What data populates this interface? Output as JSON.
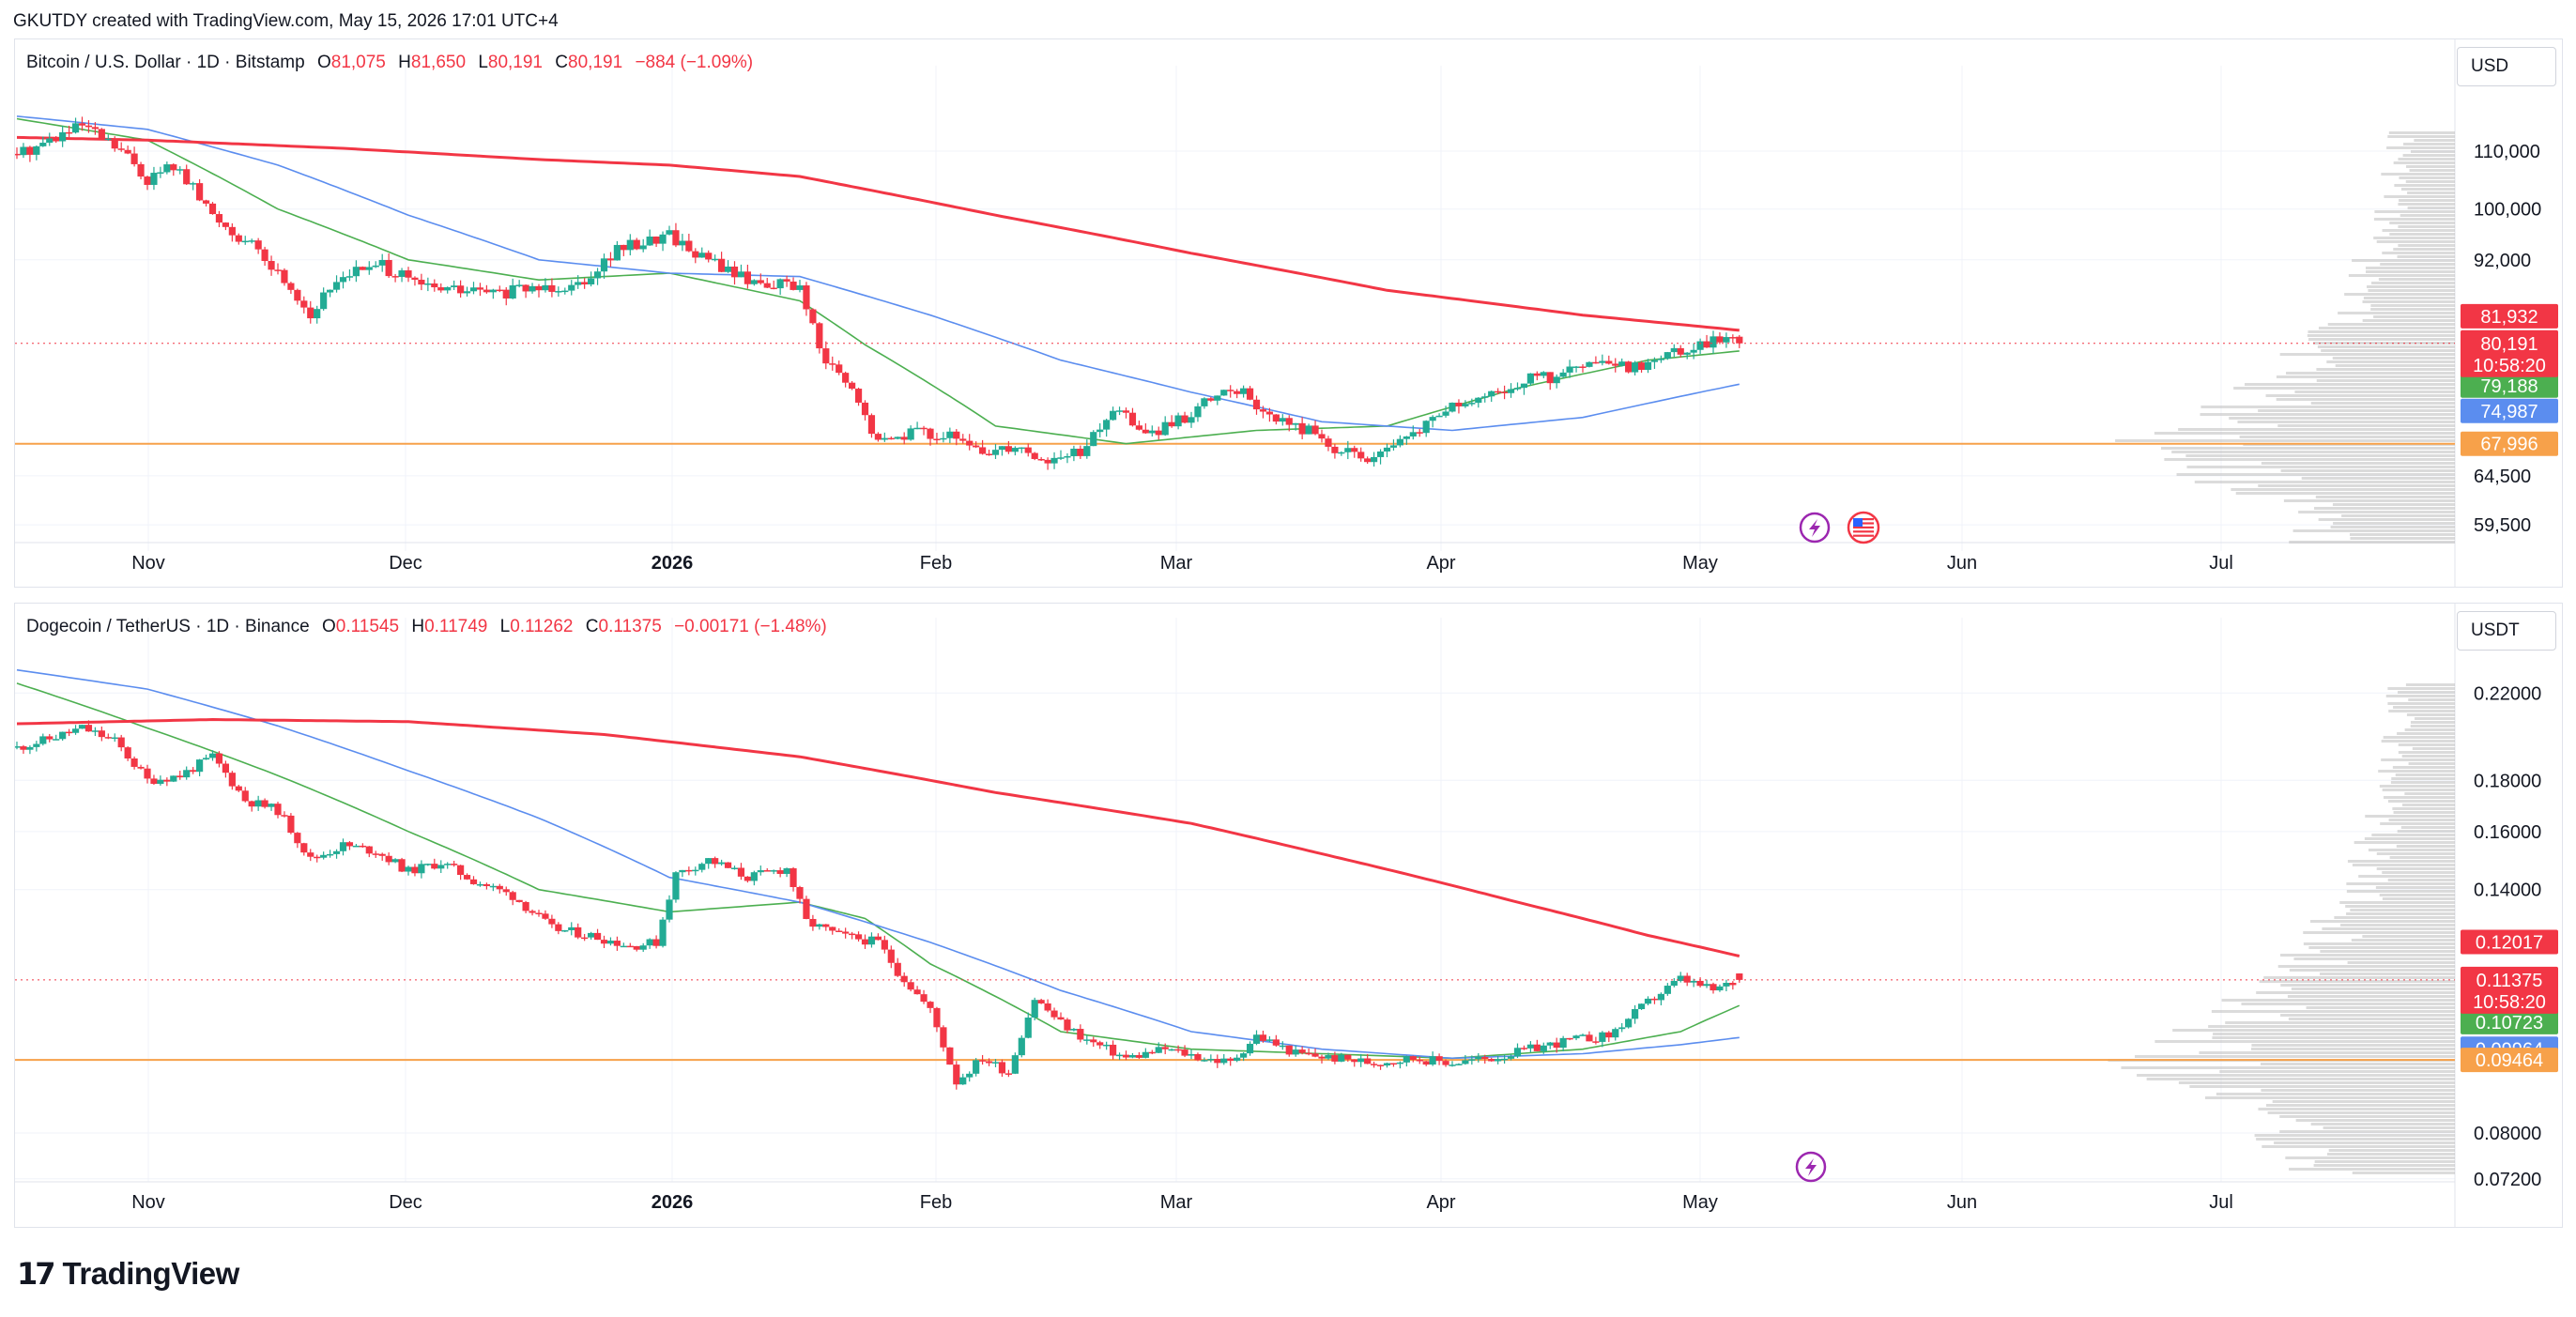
{
  "caption": "GKUTDY created with TradingView.com, May 15, 2026 17:01 UTC+4",
  "brand": {
    "name": "TradingView",
    "logo_icon": "tradingview-logo-icon"
  },
  "colors": {
    "up": "#22ab94",
    "down": "#f23645",
    "ma_fast": "#4caf50",
    "ma_mid": "#5b8def",
    "ma_slow": "#f23645",
    "hline": "#f7a14a",
    "volume_profile": "#bdbdbd"
  },
  "x_axis": {
    "labels": [
      "Nov",
      "Dec",
      "2026",
      "Feb",
      "Mar",
      "Apr",
      "May",
      "Jun",
      "Jul"
    ]
  },
  "btc": {
    "legend": {
      "symbol": "Bitcoin / U.S. Dollar · 1D · Bitstamp",
      "o_label": "O",
      "o": "81,075",
      "h_label": "H",
      "h": "81,650",
      "l_label": "L",
      "l": "80,191",
      "c_label": "C",
      "c": "80,191",
      "change": "−884 (−1.09%)"
    },
    "currency": "USD",
    "y_ticks": [
      "110,000",
      "100,000",
      "92,000",
      "64,500",
      "59,500"
    ],
    "price_tags": {
      "ma_slow": "81,932",
      "last": "80,191",
      "countdown": "10:58:20",
      "ma_fast": "79,188",
      "ma_mid": "74,987",
      "hline": "67,996"
    },
    "event_icons": [
      "lightning-icon",
      "us-flag-icon"
    ]
  },
  "doge": {
    "legend": {
      "symbol": "Dogecoin / TetherUS · 1D · Binance",
      "o_label": "O",
      "o": "0.11545",
      "h_label": "H",
      "h": "0.11749",
      "l_label": "L",
      "l": "0.11262",
      "c_label": "C",
      "c": "0.11375",
      "change": "−0.00171 (−1.48%)"
    },
    "currency": "USDT",
    "y_ticks": [
      "0.22000",
      "0.18000",
      "0.16000",
      "0.14000",
      "0.08000",
      "0.07200"
    ],
    "price_tags": {
      "ma_slow": "0.12017",
      "last": "0.11375",
      "countdown": "10:58:20",
      "ma_fast": "0.10723",
      "ma_mid": "0.09964",
      "hline": "0.09464"
    },
    "event_icons": [
      "lightning-icon"
    ]
  },
  "chart_data": [
    {
      "type": "candlestick",
      "title": "Bitcoin / U.S. Dollar · 1D · Bitstamp",
      "ylabel": "USD",
      "scale": "log",
      "ylim": [
        57000,
        119000
      ],
      "x_ticks": [
        "Nov",
        "Dec",
        "2026",
        "Feb",
        "Mar",
        "Apr",
        "May",
        "Jun",
        "Jul"
      ],
      "series_close": [
        [
          0,
          109500
        ],
        [
          6,
          112500
        ],
        [
          10,
          114500
        ],
        [
          16,
          110000
        ],
        [
          20,
          105000
        ],
        [
          24,
          107500
        ],
        [
          30,
          99000
        ],
        [
          36,
          94000
        ],
        [
          42,
          88000
        ],
        [
          45,
          84000
        ],
        [
          50,
          90000
        ],
        [
          56,
          91000
        ],
        [
          62,
          88000
        ],
        [
          68,
          87500
        ],
        [
          74,
          87000
        ],
        [
          80,
          88000
        ],
        [
          86,
          88500
        ],
        [
          92,
          93500
        ],
        [
          100,
          96000
        ],
        [
          104,
          93000
        ],
        [
          112,
          89000
        ],
        [
          120,
          88000
        ],
        [
          123,
          79000
        ],
        [
          128,
          74000
        ],
        [
          132,
          68000
        ],
        [
          137,
          69500
        ],
        [
          142,
          69000
        ],
        [
          148,
          67000
        ],
        [
          153,
          68000
        ],
        [
          158,
          66000
        ],
        [
          164,
          67500
        ],
        [
          168,
          72000
        ],
        [
          174,
          69000
        ],
        [
          178,
          70500
        ],
        [
          183,
          73000
        ],
        [
          187,
          74500
        ],
        [
          192,
          71000
        ],
        [
          198,
          69500
        ],
        [
          203,
          67000
        ],
        [
          209,
          66500
        ],
        [
          214,
          69000
        ],
        [
          219,
          72000
        ],
        [
          225,
          73000
        ],
        [
          231,
          75500
        ],
        [
          236,
          76000
        ],
        [
          241,
          77500
        ],
        [
          247,
          77000
        ],
        [
          252,
          78500
        ],
        [
          257,
          80000
        ],
        [
          261,
          81000
        ],
        [
          264,
          80191
        ]
      ],
      "moving_averages": [
        {
          "color": "#4caf50",
          "last": 79188,
          "points": [
            [
              0,
              116000
            ],
            [
              20,
              112000
            ],
            [
              40,
              100000
            ],
            [
              60,
              92000
            ],
            [
              80,
              89000
            ],
            [
              100,
              90000
            ],
            [
              120,
              86000
            ],
            [
              130,
              80000
            ],
            [
              150,
              70000
            ],
            [
              170,
              68000
            ],
            [
              190,
              69500
            ],
            [
              210,
              70000
            ],
            [
              230,
              74500
            ],
            [
              250,
              78000
            ],
            [
              264,
              79188
            ]
          ]
        },
        {
          "color": "#5b8def",
          "last": 74987,
          "points": [
            [
              0,
              116500
            ],
            [
              20,
              114000
            ],
            [
              40,
              107500
            ],
            [
              60,
              99000
            ],
            [
              80,
              92000
            ],
            [
              100,
              90000
            ],
            [
              120,
              89500
            ],
            [
              140,
              84000
            ],
            [
              160,
              78000
            ],
            [
              180,
              74000
            ],
            [
              200,
              70500
            ],
            [
              220,
              69500
            ],
            [
              240,
              71000
            ],
            [
              255,
              73500
            ],
            [
              264,
              74987
            ]
          ]
        },
        {
          "color": "#f23645",
          "last": 81932,
          "points": [
            [
              0,
              112500
            ],
            [
              20,
              112000
            ],
            [
              50,
              110500
            ],
            [
              80,
              108500
            ],
            [
              100,
              107500
            ],
            [
              120,
              105500
            ],
            [
              150,
              99000
            ],
            [
              180,
              93000
            ],
            [
              210,
              87500
            ],
            [
              240,
              84000
            ],
            [
              264,
              81932
            ]
          ]
        }
      ],
      "horizontal_lines": [
        {
          "value": 67996,
          "color": "#f7a14a"
        }
      ],
      "last_price": 80191
    },
    {
      "type": "candlestick",
      "title": "Dogecoin / TetherUS · 1D · Binance",
      "ylabel": "USDT",
      "scale": "log",
      "ylim": [
        0.0715,
        0.24
      ],
      "x_ticks": [
        "Nov",
        "Dec",
        "2026",
        "Feb",
        "Mar",
        "Apr",
        "May",
        "Jun",
        "Jul"
      ],
      "series_close": [
        [
          0,
          0.194
        ],
        [
          5,
          0.198
        ],
        [
          10,
          0.203
        ],
        [
          15,
          0.197
        ],
        [
          20,
          0.18
        ],
        [
          25,
          0.182
        ],
        [
          30,
          0.19
        ],
        [
          35,
          0.172
        ],
        [
          40,
          0.168
        ],
        [
          45,
          0.15
        ],
        [
          50,
          0.155
        ],
        [
          55,
          0.153
        ],
        [
          60,
          0.146
        ],
        [
          65,
          0.149
        ],
        [
          70,
          0.143
        ],
        [
          76,
          0.138
        ],
        [
          82,
          0.128
        ],
        [
          88,
          0.126
        ],
        [
          94,
          0.123
        ],
        [
          98,
          0.124
        ],
        [
          101,
          0.145
        ],
        [
          106,
          0.15
        ],
        [
          112,
          0.144
        ],
        [
          118,
          0.147
        ],
        [
          121,
          0.13
        ],
        [
          126,
          0.126
        ],
        [
          132,
          0.124
        ],
        [
          135,
          0.116
        ],
        [
          140,
          0.106
        ],
        [
          144,
          0.09
        ],
        [
          148,
          0.095
        ],
        [
          152,
          0.092
        ],
        [
          156,
          0.109
        ],
        [
          160,
          0.103
        ],
        [
          164,
          0.099
        ],
        [
          170,
          0.095
        ],
        [
          176,
          0.097
        ],
        [
          182,
          0.095
        ],
        [
          186,
          0.094
        ],
        [
          190,
          0.1
        ],
        [
          196,
          0.096
        ],
        [
          202,
          0.095
        ],
        [
          208,
          0.094
        ],
        [
          214,
          0.095
        ],
        [
          220,
          0.094
        ],
        [
          226,
          0.095
        ],
        [
          232,
          0.097
        ],
        [
          238,
          0.099
        ],
        [
          244,
          0.1
        ],
        [
          250,
          0.108
        ],
        [
          255,
          0.114
        ],
        [
          260,
          0.111
        ],
        [
          264,
          0.11375
        ]
      ],
      "moving_averages": [
        {
          "color": "#4caf50",
          "last": 0.10723,
          "points": [
            [
              0,
              0.225
            ],
            [
              20,
              0.203
            ],
            [
              40,
              0.182
            ],
            [
              60,
              0.16
            ],
            [
              80,
              0.14
            ],
            [
              100,
              0.133
            ],
            [
              120,
              0.136
            ],
            [
              130,
              0.131
            ],
            [
              140,
              0.118
            ],
            [
              160,
              0.101
            ],
            [
              180,
              0.097
            ],
            [
              200,
              0.096
            ],
            [
              220,
              0.095
            ],
            [
              240,
              0.097
            ],
            [
              255,
              0.101
            ],
            [
              264,
              0.10723
            ]
          ]
        },
        {
          "color": "#5b8def",
          "last": 0.09964,
          "points": [
            [
              0,
              0.232
            ],
            [
              20,
              0.222
            ],
            [
              40,
              0.204
            ],
            [
              60,
              0.184
            ],
            [
              80,
              0.165
            ],
            [
              100,
              0.144
            ],
            [
              120,
              0.136
            ],
            [
              140,
              0.124
            ],
            [
              160,
              0.111
            ],
            [
              180,
              0.101
            ],
            [
              200,
              0.097
            ],
            [
              220,
              0.095
            ],
            [
              240,
              0.096
            ],
            [
              255,
              0.098
            ],
            [
              264,
              0.09964
            ]
          ]
        },
        {
          "color": "#f23645",
          "last": 0.12017,
          "points": [
            [
              0,
              0.205
            ],
            [
              30,
              0.207
            ],
            [
              60,
              0.206
            ],
            [
              90,
              0.2
            ],
            [
              120,
              0.19
            ],
            [
              150,
              0.175
            ],
            [
              180,
              0.163
            ],
            [
              200,
              0.152
            ],
            [
              230,
              0.136
            ],
            [
              250,
              0.126
            ],
            [
              264,
              0.12017
            ]
          ]
        }
      ],
      "horizontal_lines": [
        {
          "value": 0.09464,
          "color": "#f7a14a"
        }
      ],
      "last_price": 0.11375
    }
  ]
}
